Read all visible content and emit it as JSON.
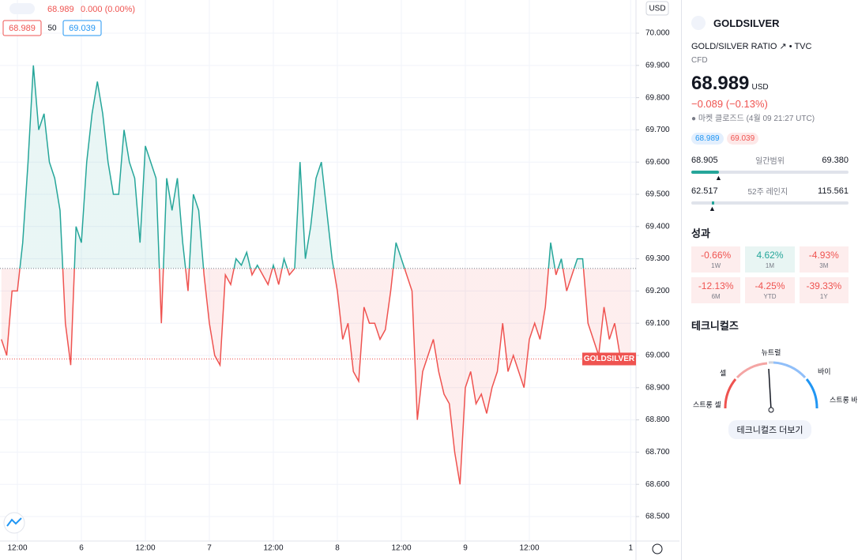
{
  "chart_data": {
    "type": "line",
    "currency": "USD",
    "legend": {
      "last": "68.989",
      "change": "0.000 (0.00%)",
      "bid": "68.989",
      "size": "50",
      "ask": "69.039"
    },
    "categories": [
      null,
      null,
      null,
      "12:00",
      null,
      null,
      null,
      null,
      null,
      null,
      null,
      null,
      null,
      null,
      null,
      "6",
      null,
      null,
      null,
      null,
      null,
      null,
      null,
      null,
      null,
      null,
      null,
      "12:00",
      null,
      null,
      null,
      null,
      null,
      null,
      null,
      null,
      null,
      null,
      null,
      "7",
      null,
      null,
      null,
      null,
      null,
      null,
      null,
      null,
      null,
      null,
      null,
      "12:00",
      null,
      null,
      null,
      null,
      null,
      null,
      null,
      null,
      null,
      null,
      null,
      "8",
      null,
      null,
      null,
      null,
      null,
      null,
      null,
      null,
      null,
      null,
      null,
      "12:00",
      null,
      null,
      null,
      null,
      null,
      null,
      null,
      null,
      null,
      null,
      null,
      "9",
      null,
      null,
      null,
      null,
      null,
      null,
      null,
      null,
      null,
      null,
      null,
      "12:00",
      null,
      null,
      null,
      null,
      null,
      null,
      null,
      null,
      null,
      null,
      null,
      null,
      null,
      null,
      null,
      null,
      null,
      null,
      "1"
    ],
    "series": [
      {
        "name": "GOLDSILVER",
        "up_color": "#26a69a",
        "down_color": "#ef5350",
        "values": [
          69.05,
          69.0,
          69.2,
          69.2,
          69.35,
          69.6,
          69.9,
          69.7,
          69.75,
          69.6,
          69.55,
          69.45,
          69.1,
          68.97,
          69.4,
          69.35,
          69.6,
          69.75,
          69.85,
          69.75,
          69.6,
          69.5,
          69.5,
          69.7,
          69.6,
          69.55,
          69.35,
          69.65,
          69.6,
          69.55,
          69.1,
          69.55,
          69.45,
          69.55,
          69.35,
          69.2,
          69.5,
          69.45,
          69.25,
          69.1,
          69.0,
          68.97,
          69.25,
          69.22,
          69.3,
          69.28,
          69.32,
          69.25,
          69.28,
          69.25,
          69.22,
          69.28,
          69.22,
          69.3,
          69.25,
          69.27,
          69.6,
          69.3,
          69.4,
          69.55,
          69.6,
          69.45,
          69.3,
          69.2,
          69.05,
          69.1,
          68.95,
          68.92,
          69.15,
          69.1,
          69.1,
          69.05,
          69.08,
          69.2,
          69.35,
          69.3,
          69.25,
          69.2,
          68.8,
          68.95,
          69.0,
          69.05,
          68.95,
          68.88,
          68.85,
          68.7,
          68.6,
          68.9,
          68.95,
          68.85,
          68.88,
          68.82,
          68.9,
          68.95,
          69.1,
          68.95,
          69.0,
          68.95,
          68.9,
          69.05,
          69.1,
          69.05,
          69.15,
          69.35,
          69.25,
          69.3,
          69.2,
          69.25,
          69.3,
          69.3,
          69.1,
          69.05,
          69.0,
          69.15,
          69.05,
          69.1,
          69.0,
          69.0,
          68.99
        ]
      }
    ],
    "baseline": 69.27,
    "last_price": 68.989,
    "ylim": [
      68.424,
      70.103
    ],
    "yticks": [
      {
        "value": 68.5,
        "label": "68.500"
      },
      {
        "value": 68.6,
        "label": "68.600"
      },
      {
        "value": 68.7,
        "label": "68.700"
      },
      {
        "value": 68.8,
        "label": "68.800"
      },
      {
        "value": 68.9,
        "label": "68.900"
      },
      {
        "value": 69.0,
        "label": "69.000"
      },
      {
        "value": 69.1,
        "label": "69.100"
      },
      {
        "value": 69.2,
        "label": "69.200"
      },
      {
        "value": 69.3,
        "label": "69.300"
      },
      {
        "value": 69.4,
        "label": "69.400"
      },
      {
        "value": 69.5,
        "label": "69.500"
      },
      {
        "value": 69.6,
        "label": "69.600"
      },
      {
        "value": 69.7,
        "label": "69.700"
      },
      {
        "value": 69.8,
        "label": "69.800"
      },
      {
        "value": 69.9,
        "label": "69.900"
      },
      {
        "value": 70.0,
        "label": "70.000"
      }
    ],
    "grid": true
  },
  "sidebar": {
    "symbol": "GOLDSILVER",
    "description": "GOLD/SILVER RATIO",
    "source": "TVC",
    "kind": "CFD",
    "price": "68.989",
    "currency": "USD",
    "change": "−0.089 (−0.13%)",
    "status": "마켓 클로즈드",
    "time": "(4월 09 21:27 UTC)",
    "bid": "68.989",
    "ask": "69.039",
    "day_range": {
      "low": "68.905",
      "label": "일간범위",
      "high": "69.380"
    },
    "year_range": {
      "low": "62.517",
      "label": "52주 레인지",
      "high": "115.561"
    },
    "performance_title": "성과",
    "performance": [
      {
        "value": "-0.66%",
        "period": "1W"
      },
      {
        "value": "4.62%",
        "period": "1M"
      },
      {
        "value": "-4.93%",
        "period": "3M"
      },
      {
        "value": "-12.13%",
        "period": "6M"
      },
      {
        "value": "-4.25%",
        "period": "YTD"
      },
      {
        "value": "-39.33%",
        "period": "1Y"
      }
    ],
    "technicals_title": "테크니컬즈",
    "gauge": {
      "sell": "셀",
      "neutral": "뉴트럴",
      "buy": "바이",
      "strong_sell": "스트롱 셀",
      "strong_buy": "스트롱 바이"
    },
    "more_button": "테크니컬즈 더보기"
  }
}
